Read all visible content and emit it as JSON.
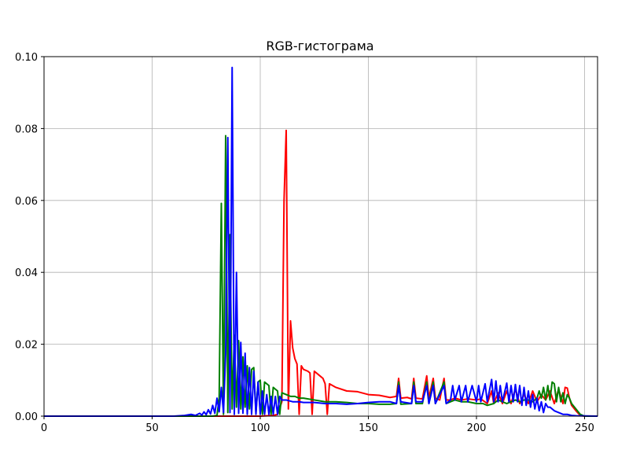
{
  "chart_data": {
    "type": "line",
    "title": "RGB-гистограма",
    "xlabel": "",
    "ylabel": "",
    "xlim": [
      0,
      256
    ],
    "ylim": [
      0,
      0.1
    ],
    "grid": true,
    "xticks": [
      0,
      50,
      100,
      150,
      200,
      250
    ],
    "yticks": [
      0.0,
      0.02,
      0.04,
      0.06,
      0.08,
      0.1
    ],
    "xtick_labels": [
      "0",
      "50",
      "100",
      "150",
      "200",
      "250"
    ],
    "ytick_labels": [
      "0.00",
      "0.02",
      "0.04",
      "0.06",
      "0.08",
      "0.10"
    ],
    "series": [
      {
        "color": "#ff0000",
        "points": [
          [
            0,
            0
          ],
          [
            60,
            0
          ],
          [
            80,
            0
          ],
          [
            100,
            0
          ],
          [
            106,
            0.0002
          ],
          [
            108,
            0.0005
          ],
          [
            110,
            0.004
          ],
          [
            111,
            0.06
          ],
          [
            112,
            0.0795
          ],
          [
            113,
            0.002
          ],
          [
            114,
            0.0265
          ],
          [
            115,
            0.019
          ],
          [
            116,
            0.016
          ],
          [
            117,
            0.0145
          ],
          [
            118,
            0.0005
          ],
          [
            119,
            0.014
          ],
          [
            120,
            0.013
          ],
          [
            122,
            0.0125
          ],
          [
            123,
            0.012
          ],
          [
            124,
            0.0005
          ],
          [
            125,
            0.0125
          ],
          [
            127,
            0.0115
          ],
          [
            129,
            0.0105
          ],
          [
            130,
            0.009
          ],
          [
            131,
            0.0005
          ],
          [
            132,
            0.009
          ],
          [
            135,
            0.008
          ],
          [
            140,
            0.007
          ],
          [
            145,
            0.0068
          ],
          [
            150,
            0.006
          ],
          [
            155,
            0.0058
          ],
          [
            160,
            0.0052
          ],
          [
            163,
            0.0055
          ],
          [
            164,
            0.0105
          ],
          [
            165,
            0.005
          ],
          [
            168,
            0.0052
          ],
          [
            170,
            0.0048
          ],
          [
            171,
            0.0105
          ],
          [
            172,
            0.005
          ],
          [
            175,
            0.0048
          ],
          [
            177,
            0.0112
          ],
          [
            178,
            0.005
          ],
          [
            180,
            0.0105
          ],
          [
            181,
            0.005
          ],
          [
            183,
            0.0045
          ],
          [
            185,
            0.0105
          ],
          [
            186,
            0.0045
          ],
          [
            188,
            0.0045
          ],
          [
            190,
            0.005
          ],
          [
            193,
            0.0045
          ],
          [
            196,
            0.0048
          ],
          [
            200,
            0.0045
          ],
          [
            202,
            0.0048
          ],
          [
            205,
            0.0035
          ],
          [
            207,
            0.007
          ],
          [
            208,
            0.0035
          ],
          [
            210,
            0.0065
          ],
          [
            212,
            0.0035
          ],
          [
            214,
            0.007
          ],
          [
            216,
            0.0035
          ],
          [
            218,
            0.0075
          ],
          [
            220,
            0.0035
          ],
          [
            222,
            0.006
          ],
          [
            224,
            0.0035
          ],
          [
            226,
            0.007
          ],
          [
            228,
            0.004
          ],
          [
            230,
            0.006
          ],
          [
            232,
            0.0045
          ],
          [
            234,
            0.007
          ],
          [
            236,
            0.0035
          ],
          [
            238,
            0.0075
          ],
          [
            240,
            0.0035
          ],
          [
            241,
            0.008
          ],
          [
            242,
            0.0078
          ],
          [
            243,
            0.005
          ],
          [
            244,
            0.003
          ],
          [
            246,
            0.0015
          ],
          [
            248,
            0.0002
          ],
          [
            250,
            0
          ],
          [
            256,
            0
          ]
        ]
      },
      {
        "color": "#008000",
        "points": [
          [
            0,
            0
          ],
          [
            60,
            0
          ],
          [
            70,
            0
          ],
          [
            78,
            0
          ],
          [
            80,
            0.0002
          ],
          [
            81,
            0.005
          ],
          [
            82,
            0.0592
          ],
          [
            83,
            0.0005
          ],
          [
            84,
            0.078
          ],
          [
            85,
            0.001
          ],
          [
            86,
            0.0505
          ],
          [
            87,
            0.002
          ],
          [
            88,
            0.0225
          ],
          [
            89,
            0.0025
          ],
          [
            90,
            0.021
          ],
          [
            91,
            0.002
          ],
          [
            92,
            0.0165
          ],
          [
            93,
            0.0025
          ],
          [
            94,
            0.014
          ],
          [
            95,
            0.002
          ],
          [
            96,
            0.013
          ],
          [
            97,
            0.0135
          ],
          [
            98,
            0.001
          ],
          [
            99,
            0.0095
          ],
          [
            100,
            0.01
          ],
          [
            101,
            0.0005
          ],
          [
            102,
            0.0095
          ],
          [
            103,
            0.009
          ],
          [
            104,
            0.0085
          ],
          [
            105,
            0.0005
          ],
          [
            106,
            0.008
          ],
          [
            107,
            0.0075
          ],
          [
            108,
            0.007
          ],
          [
            109,
            0.0005
          ],
          [
            110,
            0.0065
          ],
          [
            112,
            0.006
          ],
          [
            114,
            0.0055
          ],
          [
            116,
            0.0055
          ],
          [
            118,
            0.005
          ],
          [
            120,
            0.005
          ],
          [
            125,
            0.0045
          ],
          [
            130,
            0.004
          ],
          [
            135,
            0.004
          ],
          [
            140,
            0.0038
          ],
          [
            145,
            0.0035
          ],
          [
            150,
            0.0035
          ],
          [
            155,
            0.0033
          ],
          [
            160,
            0.0033
          ],
          [
            163,
            0.0035
          ],
          [
            164,
            0.0095
          ],
          [
            165,
            0.0033
          ],
          [
            170,
            0.0035
          ],
          [
            171,
            0.0095
          ],
          [
            172,
            0.0035
          ],
          [
            175,
            0.0035
          ],
          [
            177,
            0.0095
          ],
          [
            178,
            0.0035
          ],
          [
            180,
            0.0095
          ],
          [
            181,
            0.0035
          ],
          [
            185,
            0.0095
          ],
          [
            186,
            0.0035
          ],
          [
            190,
            0.0045
          ],
          [
            193,
            0.004
          ],
          [
            196,
            0.004
          ],
          [
            200,
            0.0035
          ],
          [
            203,
            0.0035
          ],
          [
            205,
            0.003
          ],
          [
            208,
            0.0035
          ],
          [
            210,
            0.0045
          ],
          [
            214,
            0.0035
          ],
          [
            218,
            0.0045
          ],
          [
            220,
            0.004
          ],
          [
            222,
            0.0045
          ],
          [
            224,
            0.0045
          ],
          [
            226,
            0.004
          ],
          [
            228,
            0.005
          ],
          [
            229,
            0.007
          ],
          [
            230,
            0.005
          ],
          [
            231,
            0.008
          ],
          [
            232,
            0.0045
          ],
          [
            233,
            0.0085
          ],
          [
            234,
            0.0045
          ],
          [
            235,
            0.0095
          ],
          [
            236,
            0.009
          ],
          [
            237,
            0.004
          ],
          [
            238,
            0.008
          ],
          [
            239,
            0.004
          ],
          [
            240,
            0.0065
          ],
          [
            241,
            0.0035
          ],
          [
            242,
            0.006
          ],
          [
            243,
            0.005
          ],
          [
            244,
            0.0035
          ],
          [
            246,
            0.002
          ],
          [
            248,
            0.0005
          ],
          [
            250,
            0
          ],
          [
            256,
            0
          ]
        ]
      },
      {
        "color": "#0000ff",
        "points": [
          [
            0,
            0
          ],
          [
            60,
            0
          ],
          [
            65,
            0.0002
          ],
          [
            68,
            0.0005
          ],
          [
            70,
            0.0002
          ],
          [
            72,
            0.0008
          ],
          [
            73,
            0.0003
          ],
          [
            74,
            0.0012
          ],
          [
            75,
            0.0004
          ],
          [
            76,
            0.0018
          ],
          [
            77,
            0.0006
          ],
          [
            78,
            0.003
          ],
          [
            79,
            0.0008
          ],
          [
            80,
            0.005
          ],
          [
            81,
            0.0012
          ],
          [
            82,
            0.008
          ],
          [
            83,
            0.001
          ],
          [
            84,
            0.0175
          ],
          [
            85,
            0.0775
          ],
          [
            86,
            0.001
          ],
          [
            87,
            0.097
          ],
          [
            88,
            0.0005
          ],
          [
            89,
            0.04
          ],
          [
            90,
            0.0008
          ],
          [
            91,
            0.0205
          ],
          [
            92,
            0.0008
          ],
          [
            93,
            0.0175
          ],
          [
            94,
            0.0005
          ],
          [
            95,
            0.0135
          ],
          [
            96,
            0.0005
          ],
          [
            97,
            0.0125
          ],
          [
            98,
            0.0005
          ],
          [
            99,
            0.0095
          ],
          [
            100,
            0.0005
          ],
          [
            101,
            0.007
          ],
          [
            102,
            0.0005
          ],
          [
            103,
            0.006
          ],
          [
            104,
            0.0005
          ],
          [
            105,
            0.0055
          ],
          [
            106,
            0.0005
          ],
          [
            107,
            0.0055
          ],
          [
            108,
            0.0005
          ],
          [
            109,
            0.0055
          ],
          [
            110,
            0.0045
          ],
          [
            112,
            0.0045
          ],
          [
            115,
            0.004
          ],
          [
            118,
            0.004
          ],
          [
            120,
            0.0038
          ],
          [
            125,
            0.0038
          ],
          [
            130,
            0.0035
          ],
          [
            135,
            0.0035
          ],
          [
            140,
            0.0033
          ],
          [
            145,
            0.0035
          ],
          [
            150,
            0.0038
          ],
          [
            155,
            0.004
          ],
          [
            160,
            0.004
          ],
          [
            163,
            0.0035
          ],
          [
            164,
            0.0085
          ],
          [
            165,
            0.004
          ],
          [
            170,
            0.0035
          ],
          [
            171,
            0.0085
          ],
          [
            172,
            0.004
          ],
          [
            175,
            0.004
          ],
          [
            177,
            0.0085
          ],
          [
            178,
            0.0035
          ],
          [
            180,
            0.0085
          ],
          [
            181,
            0.0035
          ],
          [
            185,
            0.0085
          ],
          [
            186,
            0.0035
          ],
          [
            188,
            0.0045
          ],
          [
            189,
            0.0085
          ],
          [
            190,
            0.0045
          ],
          [
            192,
            0.0085
          ],
          [
            193,
            0.004
          ],
          [
            195,
            0.0085
          ],
          [
            196,
            0.004
          ],
          [
            198,
            0.0085
          ],
          [
            200,
            0.004
          ],
          [
            201,
            0.0085
          ],
          [
            202,
            0.004
          ],
          [
            204,
            0.009
          ],
          [
            205,
            0.004
          ],
          [
            207,
            0.0102
          ],
          [
            208,
            0.004
          ],
          [
            209,
            0.0098
          ],
          [
            210,
            0.004
          ],
          [
            211,
            0.0085
          ],
          [
            212,
            0.004
          ],
          [
            214,
            0.0092
          ],
          [
            215,
            0.004
          ],
          [
            216,
            0.0085
          ],
          [
            217,
            0.004
          ],
          [
            218,
            0.0088
          ],
          [
            219,
            0.004
          ],
          [
            220,
            0.0085
          ],
          [
            221,
            0.003
          ],
          [
            222,
            0.008
          ],
          [
            223,
            0.003
          ],
          [
            224,
            0.007
          ],
          [
            225,
            0.0025
          ],
          [
            226,
            0.006
          ],
          [
            227,
            0.002
          ],
          [
            228,
            0.005
          ],
          [
            229,
            0.0015
          ],
          [
            230,
            0.004
          ],
          [
            231,
            0.001
          ],
          [
            232,
            0.0035
          ],
          [
            233,
            0.0025
          ],
          [
            234,
            0.0025
          ],
          [
            236,
            0.0015
          ],
          [
            238,
            0.001
          ],
          [
            240,
            0.0005
          ],
          [
            242,
            0.0005
          ],
          [
            244,
            0.0002
          ],
          [
            246,
            0.0001
          ],
          [
            256,
            0
          ]
        ]
      }
    ]
  }
}
